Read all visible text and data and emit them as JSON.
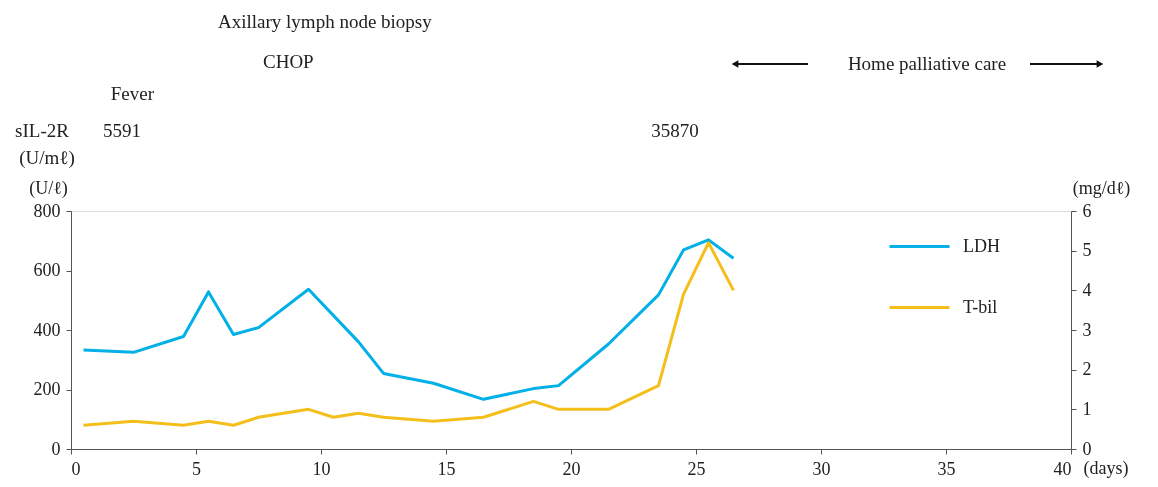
{
  "chart_data": {
    "type": "line",
    "xlabel": "(days)",
    "ylabel": "(U/ℓ)",
    "y2label": "(mg/dℓ)",
    "xlim": [
      0,
      40
    ],
    "xticks": [
      0,
      5,
      10,
      15,
      20,
      25,
      30,
      35,
      40
    ],
    "ylim": [
      0,
      800
    ],
    "yticks": [
      0,
      200,
      400,
      600,
      800
    ],
    "y2lim": [
      0,
      6
    ],
    "y2ticks": [
      0,
      1,
      2,
      3,
      4,
      5,
      6
    ],
    "grid": false,
    "legend": "top right",
    "marker": "none",
    "line_style": "solid",
    "series": [
      {
        "name": "LDH",
        "color": "#00b0e6",
        "x": [
          0.5,
          2.5,
          4.5,
          5.5,
          6.5,
          7.5,
          9.5,
          11.5,
          12.5,
          14.5,
          16.5,
          18.5,
          19.5,
          21.5,
          23.5,
          24.5,
          25.5,
          26.5
        ],
        "values": [
          333,
          325,
          378,
          528,
          385,
          408,
          537,
          360,
          254,
          221,
          167,
          203,
          213,
          353,
          518,
          669,
          703,
          641
        ]
      },
      {
        "name": "T-bil",
        "color": "#f5bf1b",
        "axis": "y2",
        "x": [
          0.5,
          2.5,
          4.5,
          5.5,
          6.5,
          7.5,
          9.5,
          10.5,
          11.5,
          12.5,
          14.5,
          16.5,
          18.5,
          19.5,
          21.5,
          23.5,
          24.5,
          25.5,
          26.5
        ],
        "values": [
          0.6,
          0.7,
          0.6,
          0.7,
          0.6,
          0.8,
          1.0,
          0.8,
          0.9,
          0.8,
          0.7,
          0.8,
          1.2,
          1.0,
          1.0,
          1.6,
          3.9,
          5.2,
          4.0
        ]
      }
    ],
    "annotations": [
      "Axillary lymph node biopsy",
      "CHOP",
      "Fever",
      "Home palliative care",
      "sIL-2R",
      "(U/mℓ)",
      "5591",
      "35870"
    ]
  }
}
